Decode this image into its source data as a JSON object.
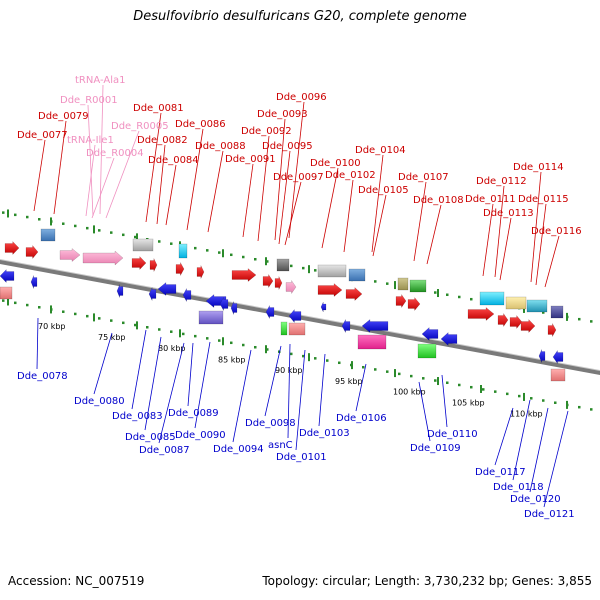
{
  "title": "Desulfovibrio desulfuricans G20, complete genome",
  "footer": {
    "accession": "Accession: NC_007519",
    "topology": "Topology: circular; Length: 3,730,232 bp; Genes: 3,855"
  },
  "colors": {
    "forward_label": "#cc0000",
    "rna_label": "#f090c0",
    "reverse_label": "#0000cc",
    "backbone": "#7a7a7a",
    "ticks": "#2a8a2a"
  },
  "kbp_ticks": [
    "70 kbp",
    "75 kbp",
    "80 kbp",
    "85 kbp",
    "90 kbp",
    "95 kbp",
    "100 kbp",
    "105 kbp",
    "110 kbp"
  ],
  "top_labels": [
    {
      "text": "tRNA-Ala1",
      "kind": "rna"
    },
    {
      "text": "Dde_R0001",
      "kind": "rna"
    },
    {
      "text": "Dde_0081",
      "kind": "fwd"
    },
    {
      "text": "Dde_0079",
      "kind": "fwd"
    },
    {
      "text": "Dde_R0005",
      "kind": "rna"
    },
    {
      "text": "Dde_0086",
      "kind": "fwd"
    },
    {
      "text": "Dde_0077",
      "kind": "fwd"
    },
    {
      "text": "tRNA-Ile1",
      "kind": "rna"
    },
    {
      "text": "Dde_0082",
      "kind": "fwd"
    },
    {
      "text": "Dde_R0004",
      "kind": "rna"
    },
    {
      "text": "Dde_0088",
      "kind": "fwd"
    },
    {
      "text": "Dde_0084",
      "kind": "fwd"
    },
    {
      "text": "Dde_0091",
      "kind": "fwd"
    },
    {
      "text": "Dde_0096",
      "kind": "fwd"
    },
    {
      "text": "Dde_0093",
      "kind": "fwd"
    },
    {
      "text": "Dde_0092",
      "kind": "fwd"
    },
    {
      "text": "Dde_0095",
      "kind": "fwd"
    },
    {
      "text": "Dde_0097",
      "kind": "fwd"
    },
    {
      "text": "Dde_0100",
      "kind": "fwd"
    },
    {
      "text": "Dde_0104",
      "kind": "fwd"
    },
    {
      "text": "Dde_0102",
      "kind": "fwd"
    },
    {
      "text": "Dde_0105",
      "kind": "fwd"
    },
    {
      "text": "Dde_0107",
      "kind": "fwd"
    },
    {
      "text": "Dde_0108",
      "kind": "fwd"
    },
    {
      "text": "Dde_0114",
      "kind": "fwd"
    },
    {
      "text": "Dde_0112",
      "kind": "fwd"
    },
    {
      "text": "Dde_0111",
      "kind": "fwd"
    },
    {
      "text": "Dde_0115",
      "kind": "fwd"
    },
    {
      "text": "Dde_0113",
      "kind": "fwd"
    },
    {
      "text": "Dde_0116",
      "kind": "fwd"
    }
  ],
  "bottom_labels": [
    "Dde_0078",
    "Dde_0080",
    "Dde_0083",
    "Dde_0085",
    "Dde_0087",
    "Dde_0089",
    "Dde_0090",
    "Dde_0094",
    "Dde_0098",
    "asnC",
    "Dde_0101",
    "Dde_0103",
    "Dde_0106",
    "Dde_0109",
    "Dde_0110",
    "Dde_0117",
    "Dde_0118",
    "Dde_0120",
    "Dde_0121"
  ]
}
